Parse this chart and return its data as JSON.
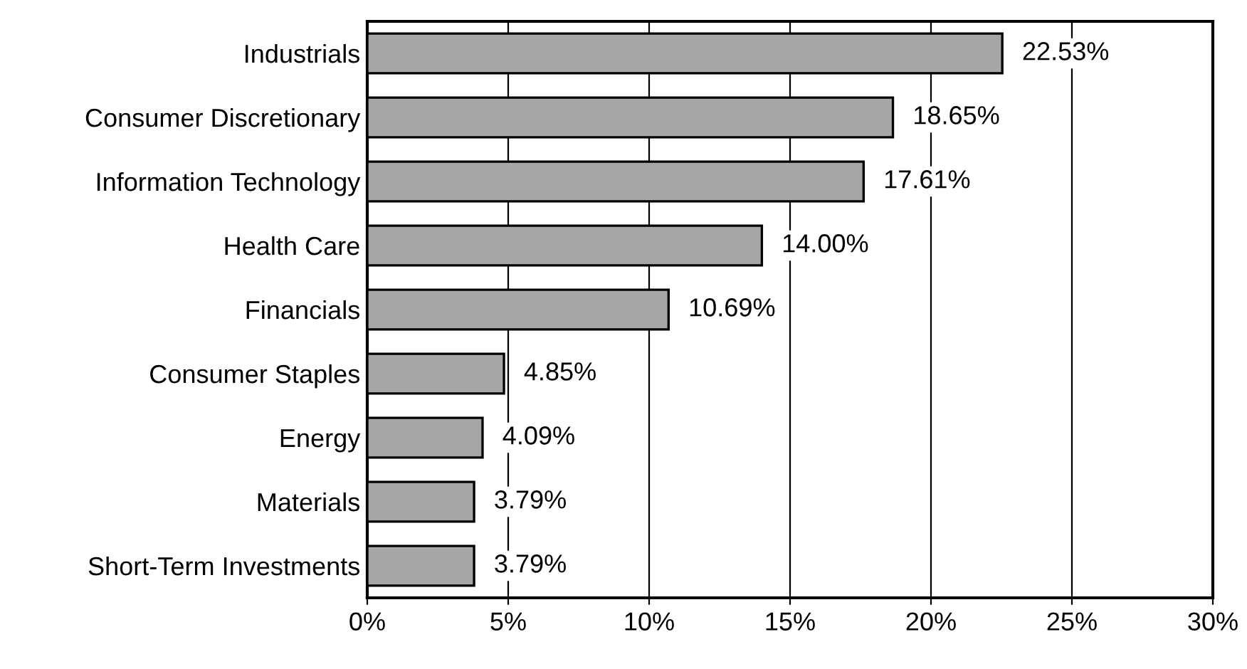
{
  "chart_data": {
    "type": "bar",
    "orientation": "horizontal",
    "categories": [
      "Industrials",
      "Consumer Discretionary",
      "Information Technology",
      "Health Care",
      "Financials",
      "Consumer Staples",
      "Energy",
      "Materials",
      "Short-Term Investments"
    ],
    "values": [
      22.53,
      18.65,
      17.61,
      14.0,
      10.69,
      4.85,
      4.09,
      3.79,
      3.79
    ],
    "value_labels": [
      "22.53%",
      "18.65%",
      "17.61%",
      "14.00%",
      "10.69%",
      "4.85%",
      "4.09%",
      "3.79%",
      "3.79%"
    ],
    "color": "#a6a6a6",
    "xlim": [
      0,
      30
    ],
    "xticks": [
      {
        "value": 0,
        "label": "0%"
      },
      {
        "value": 5,
        "label": "5%"
      },
      {
        "value": 10,
        "label": "10%"
      },
      {
        "value": 15,
        "label": "15%"
      },
      {
        "value": 20,
        "label": "20%"
      },
      {
        "value": 25,
        "label": "25%"
      },
      {
        "value": 30,
        "label": "30%"
      }
    ],
    "grid": "x"
  }
}
